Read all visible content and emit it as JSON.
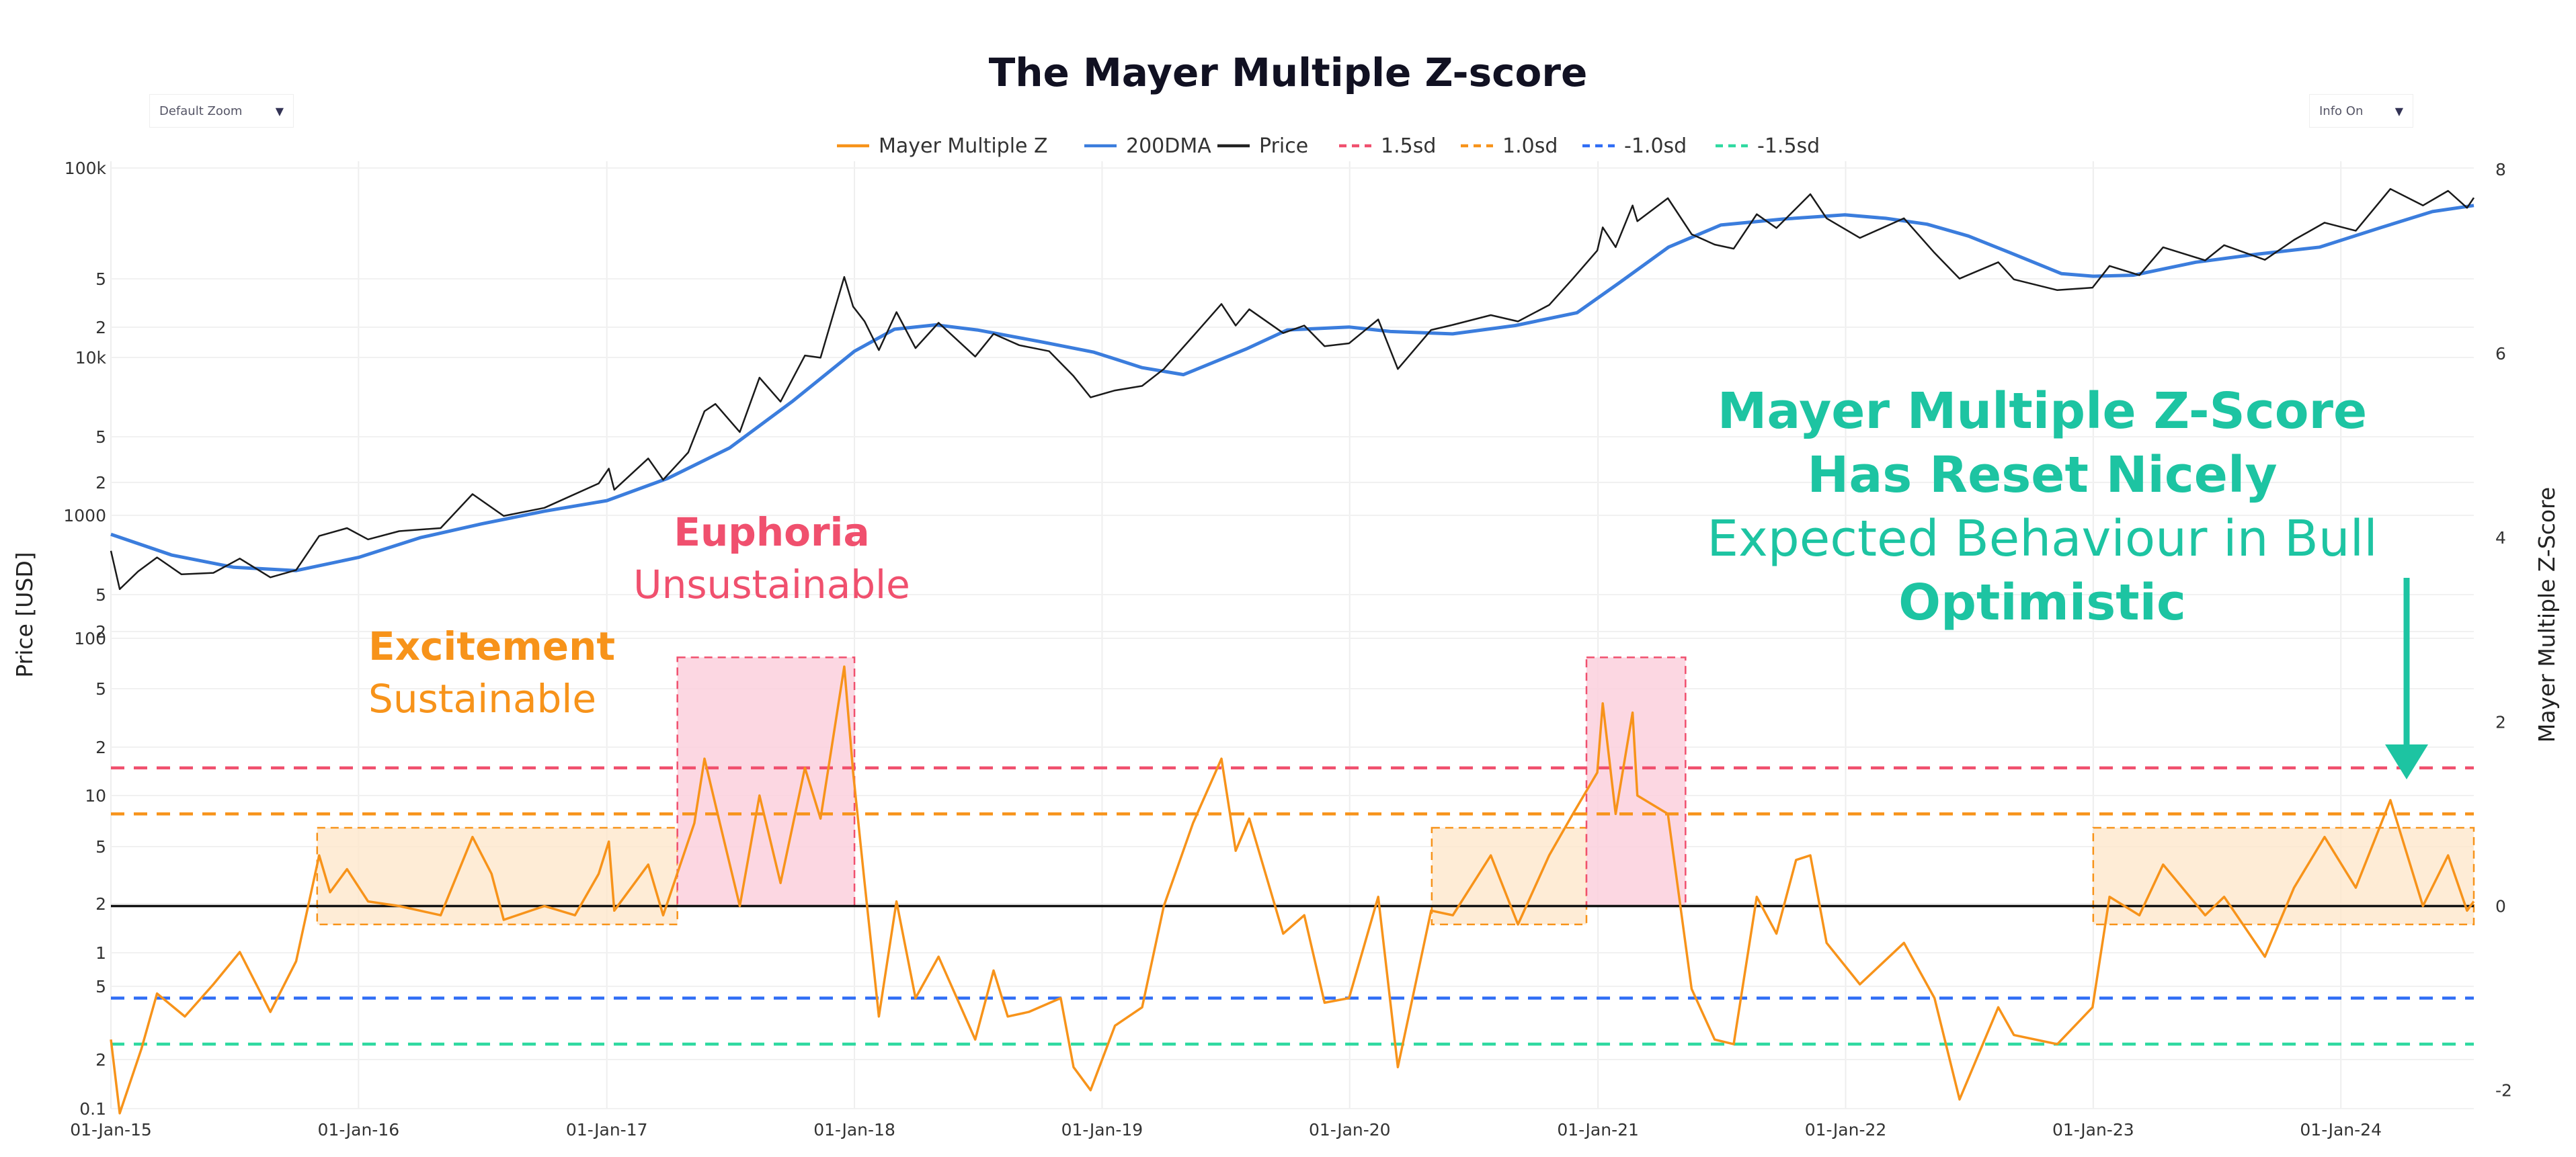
{
  "controls": {
    "zoom_label": "Default Zoom",
    "info_label": "Info On",
    "caret_icon": "triangle-down-icon"
  },
  "chart_data": {
    "type": "line",
    "title": "The Mayer Multiple Z-score",
    "ylabel_left": "Price [USD]",
    "ylabel_right": "Mayer Multiple Z-Score",
    "x_ticks": [
      "01-Jan-15",
      "01-Jan-16",
      "01-Jan-17",
      "01-Jan-18",
      "01-Jan-19",
      "01-Jan-20",
      "01-Jan-21",
      "01-Jan-22",
      "01-Jan-23",
      "01-Jan-24"
    ],
    "xlim": [
      "2015-01-01",
      "2024-07-15"
    ],
    "upper_y_ticks": [
      "100k",
      "5",
      "2",
      "10k",
      "5",
      "2",
      "1000",
      "5",
      "2"
    ],
    "lower_y_ticks": [
      "100",
      "5",
      "2",
      "10",
      "5",
      "2",
      "1",
      "5",
      "2",
      "0.1"
    ],
    "right_y_ticks": [
      "8",
      "6",
      "4",
      "2",
      "0",
      "-2"
    ],
    "right_ylim": [
      -2.2,
      8
    ],
    "legend": [
      {
        "name": "Mayer Multiple Z",
        "color": "#f7931a",
        "dash": "solid"
      },
      {
        "name": "200DMA",
        "color": "#3b7ddd",
        "dash": "solid"
      },
      {
        "name": "Price",
        "color": "#222222",
        "dash": "solid"
      },
      {
        "name": "1.5sd",
        "color": "#f0506e",
        "dash": "dash"
      },
      {
        "name": "1.0sd",
        "color": "#f7931a",
        "dash": "dash"
      },
      {
        "name": "-1.0sd",
        "color": "#2f6df5",
        "dash": "dash"
      },
      {
        "name": "-1.5sd",
        "color": "#2fd9a0",
        "dash": "dash"
      }
    ],
    "legend_placement": "top-center",
    "reference_lines": [
      {
        "value": 1.5,
        "color": "#f0506e"
      },
      {
        "value": 1.0,
        "color": "#f7931a"
      },
      {
        "value": 0,
        "color": "#111111"
      },
      {
        "value": -1.0,
        "color": "#2f6df5"
      },
      {
        "value": -1.5,
        "color": "#2fd9a0"
      }
    ],
    "price_series": [
      [
        "2015-01-01",
        320
      ],
      [
        "2015-01-14",
        180
      ],
      [
        "2015-02-10",
        235
      ],
      [
        "2015-03-10",
        290
      ],
      [
        "2015-04-15",
        225
      ],
      [
        "2015-06-01",
        230
      ],
      [
        "2015-07-10",
        285
      ],
      [
        "2015-08-24",
        215
      ],
      [
        "2015-10-01",
        240
      ],
      [
        "2015-11-04",
        400
      ],
      [
        "2015-12-15",
        450
      ],
      [
        "2016-01-15",
        380
      ],
      [
        "2016-03-01",
        430
      ],
      [
        "2016-05-01",
        450
      ],
      [
        "2016-06-17",
        750
      ],
      [
        "2016-08-02",
        540
      ],
      [
        "2016-10-01",
        610
      ],
      [
        "2016-12-20",
        880
      ],
      [
        "2017-01-04",
        1100
      ],
      [
        "2017-01-12",
        800
      ],
      [
        "2017-03-03",
        1280
      ],
      [
        "2017-03-25",
        930
      ],
      [
        "2017-05-01",
        1400
      ],
      [
        "2017-05-25",
        2600
      ],
      [
        "2017-06-10",
        2900
      ],
      [
        "2017-07-16",
        1900
      ],
      [
        "2017-08-14",
        4300
      ],
      [
        "2017-09-14",
        3000
      ],
      [
        "2017-10-20",
        6000
      ],
      [
        "2017-11-12",
        5800
      ],
      [
        "2017-12-17",
        19500
      ],
      [
        "2017-12-30",
        12500
      ],
      [
        "2018-01-16",
        10000
      ],
      [
        "2018-02-06",
        6500
      ],
      [
        "2018-03-04",
        11500
      ],
      [
        "2018-04-01",
        6700
      ],
      [
        "2018-05-05",
        9800
      ],
      [
        "2018-06-28",
        5900
      ],
      [
        "2018-07-25",
        8300
      ],
      [
        "2018-09-01",
        7000
      ],
      [
        "2018-10-15",
        6400
      ],
      [
        "2018-11-20",
        4400
      ],
      [
        "2018-12-15",
        3200
      ],
      [
        "2019-01-20",
        3550
      ],
      [
        "2019-03-01",
        3800
      ],
      [
        "2019-04-02",
        4900
      ],
      [
        "2019-05-15",
        8000
      ],
      [
        "2019-06-26",
        13000
      ],
      [
        "2019-07-17",
        9400
      ],
      [
        "2019-08-06",
        12000
      ],
      [
        "2019-09-25",
        8400
      ],
      [
        "2019-10-26",
        9400
      ],
      [
        "2019-11-25",
        6900
      ],
      [
        "2019-12-31",
        7200
      ],
      [
        "2020-02-12",
        10300
      ],
      [
        "2020-03-12",
        4900
      ],
      [
        "2020-04-30",
        8800
      ],
      [
        "2020-06-01",
        9500
      ],
      [
        "2020-07-27",
        11000
      ],
      [
        "2020-09-05",
        10000
      ],
      [
        "2020-10-21",
        12800
      ],
      [
        "2020-11-25",
        19000
      ],
      [
        "2020-12-31",
        29000
      ],
      [
        "2021-01-08",
        41000
      ],
      [
        "2021-01-27",
        30500
      ],
      [
        "2021-02-21",
        57000
      ],
      [
        "2021-02-28",
        45000
      ],
      [
        "2021-04-14",
        63500
      ],
      [
        "2021-05-19",
        37000
      ],
      [
        "2021-06-22",
        31700
      ],
      [
        "2021-07-20",
        29800
      ],
      [
        "2021-08-23",
        50000
      ],
      [
        "2021-09-21",
        40600
      ],
      [
        "2021-11-10",
        67500
      ],
      [
        "2021-12-04",
        47000
      ],
      [
        "2022-01-22",
        35000
      ],
      [
        "2022-03-28",
        47000
      ],
      [
        "2022-05-12",
        28000
      ],
      [
        "2022-06-18",
        19000
      ],
      [
        "2022-08-14",
        24300
      ],
      [
        "2022-09-06",
        18800
      ],
      [
        "2022-11-09",
        16000
      ],
      [
        "2022-12-31",
        16600
      ],
      [
        "2023-01-25",
        23000
      ],
      [
        "2023-03-10",
        20000
      ],
      [
        "2023-04-14",
        30400
      ],
      [
        "2023-06-15",
        25000
      ],
      [
        "2023-07-13",
        31400
      ],
      [
        "2023-09-11",
        25200
      ],
      [
        "2023-10-24",
        34000
      ],
      [
        "2023-12-08",
        44000
      ],
      [
        "2024-01-23",
        39000
      ],
      [
        "2024-03-14",
        73000
      ],
      [
        "2024-05-01",
        57000
      ],
      [
        "2024-06-07",
        71000
      ],
      [
        "2024-07-05",
        55000
      ],
      [
        "2024-07-15",
        64000
      ]
    ],
    "dma200_series": [
      [
        "2015-01-01",
        410
      ],
      [
        "2015-04-01",
        300
      ],
      [
        "2015-07-01",
        250
      ],
      [
        "2015-10-01",
        238
      ],
      [
        "2016-01-01",
        290
      ],
      [
        "2016-04-01",
        390
      ],
      [
        "2016-07-01",
        480
      ],
      [
        "2016-10-01",
        580
      ],
      [
        "2017-01-01",
        680
      ],
      [
        "2017-04-01",
        950
      ],
      [
        "2017-07-01",
        1500
      ],
      [
        "2017-10-01",
        3000
      ],
      [
        "2018-01-01",
        6400
      ],
      [
        "2018-03-01",
        8900
      ],
      [
        "2018-05-01",
        9500
      ],
      [
        "2018-07-01",
        8800
      ],
      [
        "2018-10-01",
        7400
      ],
      [
        "2018-12-20",
        6300
      ],
      [
        "2019-03-01",
        5000
      ],
      [
        "2019-05-01",
        4500
      ],
      [
        "2019-08-01",
        6600
      ],
      [
        "2019-10-01",
        8800
      ],
      [
        "2019-12-31",
        9200
      ],
      [
        "2020-03-01",
        8600
      ],
      [
        "2020-06-01",
        8300
      ],
      [
        "2020-09-01",
        9400
      ],
      [
        "2020-12-01",
        11400
      ],
      [
        "2021-02-01",
        17800
      ],
      [
        "2021-04-15",
        30500
      ],
      [
        "2021-07-01",
        42500
      ],
      [
        "2021-10-01",
        46500
      ],
      [
        "2021-12-31",
        49500
      ],
      [
        "2022-03-01",
        47000
      ],
      [
        "2022-05-01",
        43000
      ],
      [
        "2022-07-01",
        36000
      ],
      [
        "2022-09-01",
        28000
      ],
      [
        "2022-11-15",
        20500
      ],
      [
        "2023-01-01",
        19700
      ],
      [
        "2023-03-01",
        20000
      ],
      [
        "2023-06-01",
        24300
      ],
      [
        "2023-09-01",
        27500
      ],
      [
        "2023-12-01",
        30500
      ],
      [
        "2024-03-01",
        41000
      ],
      [
        "2024-05-15",
        52000
      ],
      [
        "2024-07-15",
        57000
      ]
    ],
    "mayer_z_series": [
      [
        "2015-01-01",
        -1.45
      ],
      [
        "2015-01-14",
        -2.25
      ],
      [
        "2015-02-15",
        -1.55
      ],
      [
        "2015-03-10",
        -0.95
      ],
      [
        "2015-04-20",
        -1.2
      ],
      [
        "2015-06-01",
        -0.85
      ],
      [
        "2015-07-10",
        -0.5
      ],
      [
        "2015-08-24",
        -1.15
      ],
      [
        "2015-10-01",
        -0.6
      ],
      [
        "2015-11-04",
        0.55
      ],
      [
        "2015-11-20",
        0.15
      ],
      [
        "2015-12-15",
        0.4
      ],
      [
        "2016-01-15",
        0.05
      ],
      [
        "2016-03-01",
        0.0
      ],
      [
        "2016-05-01",
        -0.1
      ],
      [
        "2016-06-17",
        0.75
      ],
      [
        "2016-07-15",
        0.35
      ],
      [
        "2016-08-02",
        -0.15
      ],
      [
        "2016-10-01",
        0.0
      ],
      [
        "2016-11-15",
        -0.1
      ],
      [
        "2016-12-20",
        0.35
      ],
      [
        "2017-01-04",
        0.7
      ],
      [
        "2017-01-12",
        -0.05
      ],
      [
        "2017-03-03",
        0.45
      ],
      [
        "2017-03-25",
        -0.1
      ],
      [
        "2017-05-10",
        0.9
      ],
      [
        "2017-05-25",
        1.6
      ],
      [
        "2017-06-15",
        0.95
      ],
      [
        "2017-07-16",
        0.0
      ],
      [
        "2017-08-14",
        1.2
      ],
      [
        "2017-09-14",
        0.25
      ],
      [
        "2017-10-20",
        1.5
      ],
      [
        "2017-11-12",
        0.95
      ],
      [
        "2017-12-17",
        2.6
      ],
      [
        "2017-12-30",
        1.45
      ],
      [
        "2018-01-16",
        0.25
      ],
      [
        "2018-02-06",
        -1.2
      ],
      [
        "2018-03-04",
        0.05
      ],
      [
        "2018-04-01",
        -1.0
      ],
      [
        "2018-05-05",
        -0.55
      ],
      [
        "2018-06-28",
        -1.45
      ],
      [
        "2018-07-25",
        -0.7
      ],
      [
        "2018-08-15",
        -1.2
      ],
      [
        "2018-09-15",
        -1.15
      ],
      [
        "2018-11-01",
        -1.0
      ],
      [
        "2018-11-20",
        -1.75
      ],
      [
        "2018-12-15",
        -2.0
      ],
      [
        "2019-01-20",
        -1.3
      ],
      [
        "2019-03-01",
        -1.1
      ],
      [
        "2019-04-02",
        0.0
      ],
      [
        "2019-05-15",
        0.9
      ],
      [
        "2019-06-26",
        1.6
      ],
      [
        "2019-07-17",
        0.6
      ],
      [
        "2019-08-06",
        0.95
      ],
      [
        "2019-09-25",
        -0.3
      ],
      [
        "2019-10-26",
        -0.1
      ],
      [
        "2019-11-25",
        -1.05
      ],
      [
        "2019-12-31",
        -1.0
      ],
      [
        "2020-02-12",
        0.1
      ],
      [
        "2020-03-12",
        -1.75
      ],
      [
        "2020-04-30",
        -0.05
      ],
      [
        "2020-06-01",
        -0.1
      ],
      [
        "2020-07-27",
        0.55
      ],
      [
        "2020-09-05",
        -0.2
      ],
      [
        "2020-10-21",
        0.55
      ],
      [
        "2020-11-25",
        1.0
      ],
      [
        "2020-12-31",
        1.45
      ],
      [
        "2021-01-08",
        2.2
      ],
      [
        "2021-01-27",
        1.0
      ],
      [
        "2021-02-21",
        2.1
      ],
      [
        "2021-02-28",
        1.2
      ],
      [
        "2021-04-14",
        1.0
      ],
      [
        "2021-05-19",
        -0.9
      ],
      [
        "2021-06-22",
        -1.45
      ],
      [
        "2021-07-20",
        -1.5
      ],
      [
        "2021-08-23",
        0.1
      ],
      [
        "2021-09-21",
        -0.3
      ],
      [
        "2021-10-20",
        0.5
      ],
      [
        "2021-11-10",
        0.55
      ],
      [
        "2021-12-04",
        -0.4
      ],
      [
        "2022-01-22",
        -0.85
      ],
      [
        "2022-03-28",
        -0.4
      ],
      [
        "2022-05-12",
        -1.0
      ],
      [
        "2022-06-18",
        -2.1
      ],
      [
        "2022-08-14",
        -1.1
      ],
      [
        "2022-09-06",
        -1.4
      ],
      [
        "2022-11-09",
        -1.5
      ],
      [
        "2022-12-31",
        -1.1
      ],
      [
        "2023-01-25",
        0.1
      ],
      [
        "2023-03-10",
        -0.1
      ],
      [
        "2023-04-14",
        0.45
      ],
      [
        "2023-06-15",
        -0.1
      ],
      [
        "2023-07-13",
        0.1
      ],
      [
        "2023-09-11",
        -0.55
      ],
      [
        "2023-10-24",
        0.2
      ],
      [
        "2023-12-08",
        0.75
      ],
      [
        "2024-01-23",
        0.2
      ],
      [
        "2024-03-14",
        1.15
      ],
      [
        "2024-05-01",
        0.0
      ],
      [
        "2024-06-07",
        0.55
      ],
      [
        "2024-07-05",
        -0.05
      ],
      [
        "2024-07-15",
        0.05
      ]
    ],
    "highlight_boxes": [
      {
        "start": "2015-11-01",
        "end": "2017-04-15",
        "top": 0.85,
        "bottom": -0.2,
        "kind": "excitement"
      },
      {
        "start": "2017-04-15",
        "end": "2018-01-01",
        "top": 2.7,
        "bottom": 0.0,
        "kind": "euphoria"
      },
      {
        "start": "2020-05-01",
        "end": "2020-12-15",
        "top": 0.85,
        "bottom": -0.2,
        "kind": "excitement"
      },
      {
        "start": "2020-12-15",
        "end": "2021-05-10",
        "top": 2.7,
        "bottom": 0.0,
        "kind": "euphoria"
      },
      {
        "start": "2023-01-01",
        "end": "2024-07-15",
        "top": 0.85,
        "bottom": -0.2,
        "kind": "excitement"
      }
    ],
    "annotations": {
      "excitement_title": "Excitement",
      "excitement_sub": "Sustainable",
      "euphoria_title": "Euphoria",
      "euphoria_sub": "Unsustainable",
      "reset_line1": "Mayer Multiple Z-Score",
      "reset_line2": "Has Reset Nicely",
      "reset_line3": "Expected Behaviour in Bull",
      "reset_line4": "Optimistic"
    },
    "colors": {
      "orange": "#f7931a",
      "pink": "#f0506e",
      "blue": "#3b7ddd",
      "teal": "#1dc4a2",
      "excitement_fill": "#fde5c8",
      "euphoria_fill": "#fcd0dd"
    }
  }
}
